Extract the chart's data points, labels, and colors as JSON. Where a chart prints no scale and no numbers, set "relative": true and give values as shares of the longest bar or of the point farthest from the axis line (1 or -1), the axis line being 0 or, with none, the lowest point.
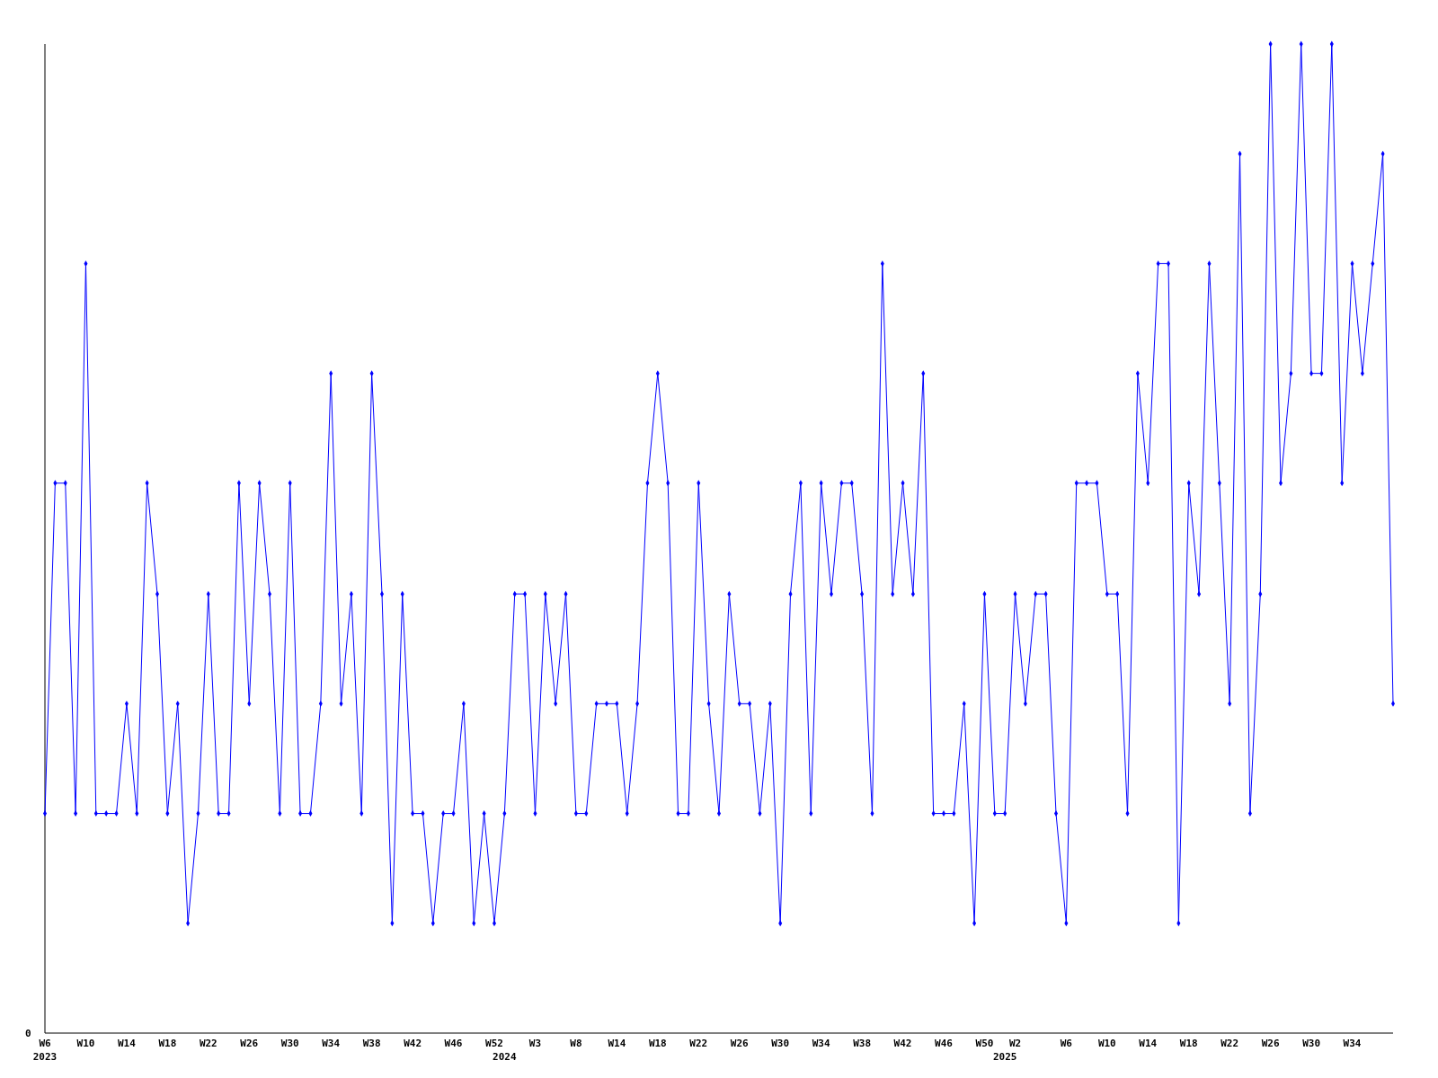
{
  "chart_data": {
    "type": "line",
    "relative": true,
    "marker": "diamond",
    "line_style": "solid",
    "annotations": [
      "0"
    ],
    "categories": [
      "W6\n2023",
      null,
      null,
      null,
      "W10",
      null,
      null,
      null,
      "W14",
      null,
      null,
      null,
      "W18",
      null,
      null,
      null,
      "W22",
      null,
      null,
      null,
      "W26",
      null,
      null,
      null,
      "W30",
      null,
      null,
      null,
      "W34",
      null,
      null,
      null,
      "W38",
      null,
      null,
      null,
      "W42",
      null,
      null,
      null,
      "W46",
      null,
      null,
      null,
      "W52",
      "\n2024",
      null,
      null,
      "W3",
      null,
      null,
      null,
      "W8",
      null,
      null,
      null,
      "W14",
      null,
      null,
      null,
      "W18",
      null,
      null,
      null,
      "W22",
      null,
      null,
      null,
      "W26",
      null,
      null,
      null,
      "W30",
      null,
      null,
      null,
      "W34",
      null,
      null,
      null,
      "W38",
      null,
      null,
      null,
      "W42",
      null,
      null,
      null,
      "W46",
      null,
      null,
      null,
      "W50",
      null,
      "\n2025",
      "W2",
      null,
      null,
      null,
      null,
      "W6",
      null,
      null,
      null,
      "W10",
      null,
      null,
      null,
      "W14",
      null,
      null,
      null,
      "W18",
      null,
      null,
      null,
      "W22",
      null,
      null,
      null,
      "W26",
      null,
      null,
      null,
      "W30",
      null,
      null,
      null,
      "W34",
      null,
      null,
      null,
      null
    ],
    "series": [
      {
        "color": "#0000ff",
        "values": [
          0.222,
          0.556,
          0.556,
          0.222,
          0.778,
          0.222,
          0.222,
          0.222,
          0.333,
          0.222,
          0.556,
          0.444,
          0.222,
          0.333,
          0.111,
          0.222,
          0.444,
          0.222,
          0.222,
          0.556,
          0.333,
          0.556,
          0.444,
          0.222,
          0.556,
          0.222,
          0.222,
          0.333,
          0.667,
          0.333,
          0.444,
          0.222,
          0.667,
          0.444,
          0.111,
          0.444,
          0.222,
          0.222,
          0.111,
          0.222,
          0.222,
          0.333,
          0.111,
          0.222,
          0.111,
          0.222,
          0.444,
          0.444,
          0.222,
          0.444,
          0.333,
          0.444,
          0.222,
          0.222,
          0.333,
          0.333,
          0.333,
          0.222,
          0.333,
          0.556,
          0.667,
          0.556,
          0.222,
          0.222,
          0.556,
          0.333,
          0.222,
          0.444,
          0.333,
          0.333,
          0.222,
          0.333,
          0.111,
          0.444,
          0.556,
          0.222,
          0.556,
          0.444,
          0.556,
          0.556,
          0.444,
          0.222,
          0.778,
          0.444,
          0.556,
          0.444,
          0.667,
          0.222,
          0.222,
          0.222,
          0.333,
          0.111,
          0.444,
          0.222,
          0.222,
          0.444,
          0.333,
          0.444,
          0.444,
          0.222,
          0.111,
          0.556,
          0.556,
          0.556,
          0.444,
          0.444,
          0.222,
          0.667,
          0.556,
          0.778,
          0.778,
          0.111,
          0.556,
          0.444,
          0.778,
          0.556,
          0.333,
          0.889,
          0.222,
          0.444,
          1,
          0.556,
          0.667,
          1,
          0.667,
          0.667,
          1,
          0.556,
          0.778,
          0.667,
          0.778,
          0.889,
          0.333
        ]
      }
    ]
  }
}
